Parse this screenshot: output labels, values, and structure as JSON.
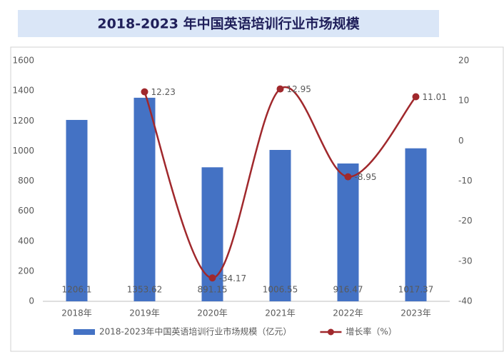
{
  "chart_data": {
    "type": "bar_line",
    "title": "2018-2023 年中国英语培训行业市场规模",
    "categories": [
      "2018年",
      "2019年",
      "2020年",
      "2021年",
      "2022年",
      "2023年"
    ],
    "series": [
      {
        "name": "2018-2023年中国英语培训行业市场规模（亿元）",
        "type": "bar",
        "color": "#4472c4",
        "values": [
          1206.1,
          1353.62,
          891.15,
          1006.55,
          916.47,
          1017.37
        ]
      },
      {
        "name": "增长率（%）",
        "type": "line",
        "axis": "y2",
        "color": "#a0282c",
        "smooth": true,
        "values": [
          null,
          12.23,
          -34.17,
          12.95,
          -8.95,
          11.01
        ]
      }
    ],
    "ylim": [
      0,
      1600
    ],
    "yticks": [
      0,
      200,
      400,
      600,
      800,
      1000,
      1200,
      1400,
      1600
    ],
    "y2lim": [
      -40,
      20
    ],
    "y2ticks": [
      -40,
      -30,
      -20,
      -10,
      0,
      10,
      20
    ],
    "grid": false,
    "legend": "bottom"
  }
}
